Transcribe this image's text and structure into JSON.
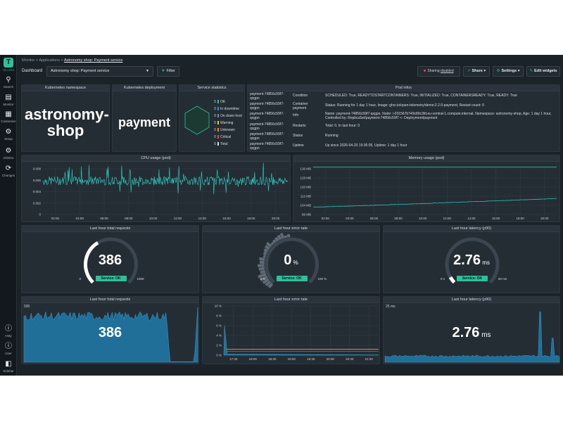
{
  "sidebar": {
    "logo_text": "TELLERS",
    "items": [
      {
        "label": "Search",
        "icon": "search-icon"
      },
      {
        "label": "Monitor",
        "icon": "bar-chart-icon"
      },
      {
        "label": "Customize",
        "icon": "grid-icon"
      },
      {
        "label": "Setup",
        "icon": "gear-icon"
      },
      {
        "label": "OrbitVu",
        "icon": "gear-icon"
      },
      {
        "label": "Changes",
        "icon": "changes-icon"
      }
    ],
    "bottom": [
      {
        "label": "Help",
        "icon": "info-icon"
      },
      {
        "label": "User",
        "icon": "info-icon"
      },
      {
        "label": "Sidebar",
        "icon": "sidebar-toggle-icon"
      }
    ]
  },
  "breadcrumb": {
    "items": [
      "Monitor",
      "Applications"
    ],
    "current": "Astronomy shop: Payment service"
  },
  "toolbar": {
    "label": "Dashboard",
    "dashboard_select": "Astronomy shop: Payment service",
    "filter": "Filter",
    "sharing_prefix": "Sharing",
    "sharing_status": "disabled",
    "share": "Share",
    "settings": "Settings",
    "edit": "Edit widgets"
  },
  "kubernetes_namespace": {
    "title": "Kubernetes namespace",
    "value": "astronomy-shop"
  },
  "kubernetes_deployment": {
    "title": "Kubernetes deployment",
    "value": "payment"
  },
  "service_statistics": {
    "title": "Service statistics",
    "rows": [
      {
        "count": "5",
        "label": "OK",
        "color": "#2fbf9a"
      },
      {
        "count": "0",
        "label": "In downtime",
        "color": "#2f8fd8"
      },
      {
        "count": "0",
        "label": "On down host",
        "color": "#7d8a96"
      },
      {
        "count": "0",
        "label": "Warning",
        "color": "#f2c230"
      },
      {
        "count": "0",
        "label": "Unknown",
        "color": "#f08a24"
      },
      {
        "count": "0",
        "label": "Critical",
        "color": "#e34a4a"
      },
      {
        "count": "5",
        "label": "Total",
        "color": "#d6dde3"
      }
    ]
  },
  "pod_info": {
    "title": "Pod infos",
    "pods": [
      "payment-74856c59f7-qxgpn",
      "payment-74856c59f7-qxgpn",
      "payment-74856c59f7-qxgpn",
      "payment-74856c59f7-qxgpn",
      "payment-74856c59f7-qxgpn",
      "payment-74856c59f7-qxgpn"
    ],
    "rows": [
      {
        "key": "Condition",
        "value": "SCHEDULED: True, READYTOSTARTCONTAINERS: True, INITIALIZED: True, CONTAINERSREADY: True, READY: True"
      },
      {
        "key": "Container payment",
        "value": "Status: Running for 1 day 1 hour, Image: ghcr.io/open-telemetry/demo:2.2.0-payment, Restart count: 0"
      },
      {
        "key": "Info",
        "value": "Name: payment-74856c59f7-qxgpn, Node: i-031567b749c80c3fd.eu-central-1.compute.internal, Namespace: astronomy-shop, Age: 1 day 1 hour, Controlled by: ReplicaSet/payment-74856c59f7 <- Deployment/payment"
      },
      {
        "key": "Restarts",
        "value": "Total: 0, In last hour: 0"
      },
      {
        "key": "Status",
        "value": "Running"
      },
      {
        "key": "Uptime",
        "value": "Up since 2026-04-20 19:36:05, Uptime: 1 day 1 hour"
      }
    ]
  },
  "cpu_chart": {
    "title": "CPU usage (pod)",
    "line_color": "#2fd3c8",
    "y_ticks": [
      "0",
      "0.002",
      "0.004",
      "0.006",
      "0.008"
    ],
    "x_ticks": [
      "02:00",
      "04:00",
      "06:00",
      "08:00",
      "10:00",
      "12:00",
      "14:00",
      "16:00",
      "18:00",
      "20:00"
    ]
  },
  "memory_chart": {
    "title": "Memory usage (pod)",
    "line_color": "#2fd3c8",
    "limit_color": "#2fbf9a",
    "y_ticks": [
      "96 MB",
      "104 MB",
      "112 MB",
      "120 MB",
      "128 MB",
      "136 MB"
    ],
    "x_ticks": [
      "02:00",
      "04:00",
      "06:00",
      "08:00",
      "10:00",
      "12:00",
      "14:00",
      "16:00",
      "18:00",
      "20:00"
    ]
  },
  "gauges": [
    {
      "title": "Last hour total requests",
      "value": "386",
      "unit": "",
      "badge": "Service: OK",
      "min": "0",
      "max": "1000",
      "fraction": 0.386
    },
    {
      "title": "Last hour error rate",
      "value": "0",
      "unit": "%",
      "badge": "Service: OK",
      "min": "0 %",
      "max": "100 %",
      "fraction": 0.0
    },
    {
      "title": "Last hour latency (p90)",
      "value": "2.76",
      "unit": "ms",
      "badge": "Service: OK",
      "min": "0 s",
      "max": "50 ms",
      "fraction": 0.055
    }
  ],
  "requests_chart": {
    "title": "Last hour total requests",
    "value": "386",
    "y_top": "500",
    "y_bottom": "0",
    "fill_color": "#1f6f99"
  },
  "error_chart": {
    "title": "Last hour error rate",
    "y_ticks": [
      "0 %",
      "2 %",
      "4 %",
      "6 %",
      "8 %",
      "10 %"
    ],
    "x_ticks": [
      "17:30",
      "18:00",
      "18:30",
      "19:00",
      "19:30",
      "20:00",
      "20:30",
      "21:00"
    ],
    "warn_color": "#f2c230",
    "crit_color": "#e34a4a"
  },
  "latency_chart": {
    "title": "Last hour latency (p90)",
    "value": "2.76",
    "unit": "ms",
    "y_top": "25 ms",
    "y_bottom": "0",
    "fill_color": "#1f6f99"
  }
}
